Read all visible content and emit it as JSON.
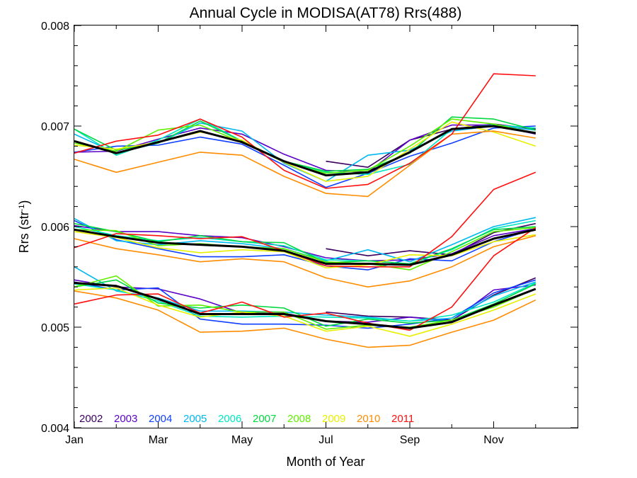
{
  "chart_data": {
    "type": "line",
    "title": "Annual Cycle in MODISA(AT78) Rrs(488)",
    "xlabel": "Month of Year",
    "ylabel": "Rrs (str",
    "ylabel_sup": "-1",
    "ylabel_close": ")",
    "xlim": [
      1,
      13
    ],
    "ylim": [
      0.004,
      0.008
    ],
    "x_ticks": [
      1,
      3,
      5,
      7,
      9,
      11
    ],
    "x_tick_labels": [
      "Jan",
      "Mar",
      "May",
      "Jul",
      "Sep",
      "Nov"
    ],
    "y_ticks": [
      0.004,
      0.005,
      0.006,
      0.007,
      0.008
    ],
    "y_tick_labels": [
      "0.004",
      "0.005",
      "0.006",
      "0.007",
      "0.008"
    ],
    "grid": false,
    "legend_position": "bottom-left",
    "x": [
      1,
      2,
      3,
      4,
      5,
      6,
      7,
      8,
      9,
      10,
      11,
      12
    ],
    "series": [
      {
        "name": "2002",
        "color": "#3a0060",
        "groups": [
          [
            null,
            null,
            null,
            null,
            null,
            null,
            0.00665,
            0.00659,
            0.00686,
            0.00697,
            0.00702,
            0.00697
          ],
          [
            null,
            null,
            null,
            null,
            null,
            null,
            0.00578,
            0.00571,
            0.00576,
            0.00572,
            0.00594,
            0.00603
          ],
          [
            null,
            null,
            null,
            null,
            null,
            null,
            0.00515,
            0.00511,
            0.0051,
            0.00507,
            0.00532,
            0.00549
          ]
        ]
      },
      {
        "name": "2003",
        "color": "#5a00c8",
        "groups": [
          [
            0.00674,
            0.00675,
            0.00687,
            0.00698,
            0.00692,
            0.00672,
            0.00656,
            0.00654,
            0.00686,
            0.00701,
            0.00701,
            0.00692
          ],
          [
            0.00601,
            0.00595,
            0.00595,
            0.00591,
            0.00589,
            0.0058,
            0.00569,
            0.00566,
            0.00567,
            0.00573,
            0.00591,
            0.00598
          ],
          [
            0.00547,
            0.0054,
            0.00538,
            0.00528,
            0.00514,
            0.00514,
            0.00506,
            0.00505,
            0.0051,
            0.00506,
            0.00537,
            0.00542
          ]
        ]
      },
      {
        "name": "2004",
        "color": "#1040ff",
        "groups": [
          [
            0.00674,
            0.0068,
            0.00681,
            0.00689,
            0.00682,
            0.00661,
            0.00639,
            0.00653,
            0.0067,
            0.00683,
            0.00698,
            0.007
          ],
          [
            0.00606,
            0.00587,
            0.00578,
            0.0057,
            0.0057,
            0.00572,
            0.00561,
            0.00557,
            0.00568,
            0.00566,
            0.00585,
            0.00598
          ],
          [
            0.00545,
            0.00537,
            0.00539,
            0.00508,
            0.00503,
            0.00503,
            0.00502,
            0.00499,
            0.00503,
            0.00509,
            0.00534,
            0.00547
          ]
        ]
      },
      {
        "name": "2005",
        "color": "#00b8f0",
        "groups": [
          [
            0.00692,
            0.00673,
            0.00683,
            0.00703,
            0.00695,
            0.00663,
            0.00645,
            0.00671,
            0.00676,
            0.00695,
            0.007,
            0.00696
          ],
          [
            0.00608,
            0.00586,
            0.00582,
            0.00586,
            0.00583,
            0.00578,
            0.00566,
            0.00577,
            0.00565,
            0.00582,
            0.006,
            0.00609
          ],
          [
            0.0056,
            0.00536,
            0.00529,
            0.00516,
            0.00516,
            0.00515,
            0.00512,
            0.0051,
            0.00506,
            0.00509,
            0.00531,
            0.00545
          ]
        ]
      },
      {
        "name": "2006",
        "color": "#00e8c0",
        "groups": [
          [
            0.00697,
            0.00671,
            0.00686,
            0.00707,
            0.00685,
            0.00665,
            0.00654,
            0.00652,
            0.00662,
            0.00697,
            0.00701,
            0.00698
          ],
          [
            0.006,
            0.00591,
            0.00586,
            0.00589,
            0.00585,
            0.00581,
            0.00567,
            0.00566,
            0.00563,
            0.00577,
            0.00598,
            0.00606
          ],
          [
            0.00543,
            0.00537,
            0.00526,
            0.00511,
            0.0051,
            0.00511,
            0.0051,
            0.00509,
            0.00506,
            0.00512,
            0.00525,
            0.00544
          ]
        ]
      },
      {
        "name": "2007",
        "color": "#00d840",
        "groups": [
          [
            0.00697,
            0.00676,
            0.00683,
            0.00705,
            0.00685,
            0.00665,
            0.00655,
            0.00657,
            0.00673,
            0.00709,
            0.00707,
            0.00696
          ],
          [
            0.00603,
            0.00595,
            0.00585,
            0.00591,
            0.00585,
            0.00584,
            0.00564,
            0.00566,
            0.00563,
            0.00578,
            0.00597,
            0.006
          ],
          [
            0.0054,
            0.00547,
            0.00524,
            0.00519,
            0.00522,
            0.00519,
            0.00501,
            0.00508,
            0.00504,
            0.00507,
            0.00523,
            0.00543
          ]
        ]
      },
      {
        "name": "2008",
        "color": "#60f000",
        "groups": [
          [
            0.00683,
            0.00675,
            0.00696,
            0.00701,
            0.00684,
            0.00664,
            0.00653,
            0.00656,
            0.0068,
            0.00707,
            0.00702,
            0.00693
          ],
          [
            0.00597,
            0.00596,
            0.00581,
            0.00583,
            0.0058,
            0.00578,
            0.00565,
            0.00563,
            0.00557,
            0.00575,
            0.00595,
            0.00599
          ],
          [
            0.0054,
            0.00551,
            0.00521,
            0.00522,
            0.00515,
            0.00515,
            0.00498,
            0.00502,
            0.005,
            0.00507,
            0.0052,
            0.00538
          ]
        ]
      },
      {
        "name": "2009",
        "color": "#e8f000",
        "groups": [
          [
            0.00681,
            0.00677,
            0.00684,
            0.00694,
            0.00686,
            0.00664,
            0.00645,
            0.0065,
            0.00677,
            0.00704,
            0.00694,
            0.0068
          ],
          [
            0.00595,
            0.00589,
            0.00579,
            0.00574,
            0.00577,
            0.00575,
            0.00559,
            0.00562,
            0.00572,
            0.00571,
            0.00585,
            0.00592
          ],
          [
            0.00537,
            0.00539,
            0.00522,
            0.0051,
            0.00515,
            0.00511,
            0.00496,
            0.00501,
            0.00491,
            0.00503,
            0.00517,
            0.00533
          ]
        ]
      },
      {
        "name": "2010",
        "color": "#ff8c00",
        "groups": [
          [
            0.00667,
            0.00654,
            0.00664,
            0.00674,
            0.00671,
            0.0065,
            0.00633,
            0.0063,
            0.00661,
            0.00692,
            0.00695,
            0.00688
          ],
          [
            0.00588,
            0.00578,
            0.00572,
            0.00565,
            0.00568,
            0.00565,
            0.00549,
            0.0054,
            0.00546,
            0.0056,
            0.0058,
            0.00591
          ],
          [
            0.00536,
            0.00529,
            0.00517,
            0.00495,
            0.00496,
            0.00499,
            0.00488,
            0.0048,
            0.00482,
            0.00495,
            0.00507,
            0.00527
          ]
        ]
      },
      {
        "name": "2011",
        "color": "#ff1010",
        "groups": [
          [
            0.00673,
            0.00685,
            0.00691,
            0.00707,
            0.00689,
            0.00656,
            0.00638,
            0.00642,
            0.00663,
            0.00692,
            0.00752,
            0.0075
          ],
          [
            0.00579,
            0.00593,
            0.00591,
            0.00588,
            0.0059,
            0.00576,
            0.00561,
            0.0056,
            0.0056,
            0.0059,
            0.00637,
            0.00654
          ],
          [
            0.00523,
            0.00532,
            0.00533,
            0.00514,
            0.00525,
            0.0051,
            0.00514,
            0.00504,
            0.00497,
            0.0052,
            0.00571,
            0.00599
          ]
        ]
      },
      {
        "color": "#000000",
        "groups": [
          [
            0.00685,
            0.00673,
            0.00684,
            0.00695,
            0.00684,
            0.00665,
            0.00651,
            0.00654,
            0.00674,
            0.00697,
            0.007,
            0.00693
          ],
          [
            0.00597,
            0.0059,
            0.00584,
            0.00582,
            0.0058,
            0.00576,
            0.00563,
            0.00563,
            0.00562,
            0.00572,
            0.00588,
            0.00597
          ],
          [
            0.00544,
            0.00541,
            0.00528,
            0.00513,
            0.00513,
            0.00513,
            0.00506,
            0.00503,
            0.00499,
            0.00505,
            0.00522,
            0.00538
          ]
        ]
      }
    ]
  }
}
